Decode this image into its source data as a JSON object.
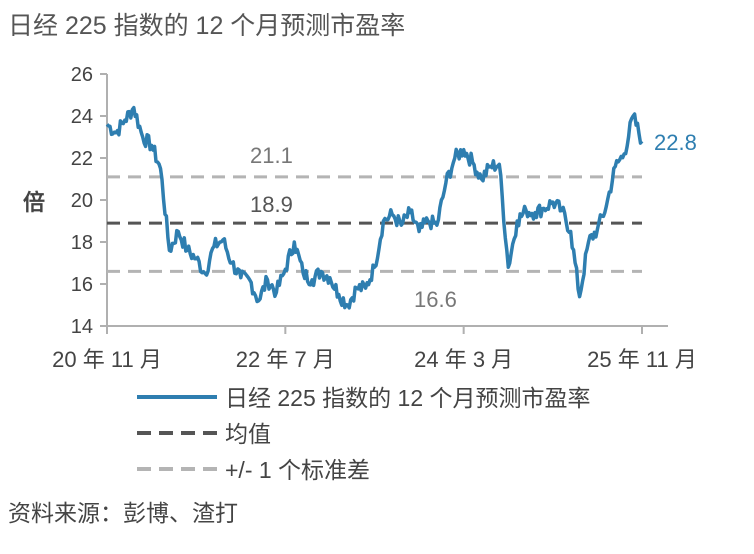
{
  "page": {
    "title": "日经 225 指数的 12 个月预测市盈率",
    "source": "资料来源：彭博、渣打"
  },
  "chart_data": {
    "type": "line",
    "ylabel": "倍",
    "ylim": [
      14,
      26
    ],
    "yticks": [
      14,
      16,
      18,
      20,
      22,
      24,
      26
    ],
    "xlim": [
      "2020-11",
      "2025-11"
    ],
    "xticks": [
      {
        "date": "2020-11",
        "label": "20 年 11 月"
      },
      {
        "date": "2022-07",
        "label": "22 年 7 月"
      },
      {
        "date": "2024-03",
        "label": "24 年 3 月"
      },
      {
        "date": "2025-11",
        "label": "25 年 11 月"
      }
    ],
    "colors": {
      "series": "#2e7eb0",
      "mean": "#555555",
      "band": "#b4b4b4"
    },
    "series": [
      {
        "name": "日经 225 指数的 12 个月预测市盈率",
        "points": [
          [
            "2020-11",
            23.6
          ],
          [
            "2020-12",
            23.2
          ],
          [
            "2021-01",
            23.8
          ],
          [
            "2021-02",
            24.4
          ],
          [
            "2021-03",
            23.0
          ],
          [
            "2021-04",
            22.6
          ],
          [
            "2021-05",
            21.5
          ],
          [
            "2021-06",
            17.6
          ],
          [
            "2021-07",
            18.5
          ],
          [
            "2021-08",
            17.6
          ],
          [
            "2021-09",
            17.2
          ],
          [
            "2021-10",
            16.5
          ],
          [
            "2021-11",
            17.8
          ],
          [
            "2021-12",
            18.1
          ],
          [
            "2022-01",
            17.0
          ],
          [
            "2022-02",
            16.3
          ],
          [
            "2022-03",
            16.2
          ],
          [
            "2022-04",
            15.2
          ],
          [
            "2022-05",
            16.2
          ],
          [
            "2022-06",
            15.6
          ],
          [
            "2022-07",
            16.7
          ],
          [
            "2022-08",
            18.0
          ],
          [
            "2022-09",
            16.5
          ],
          [
            "2022-10",
            16.2
          ],
          [
            "2022-11",
            16.6
          ],
          [
            "2022-12",
            16.3
          ],
          [
            "2023-01",
            15.5
          ],
          [
            "2023-02",
            15.0
          ],
          [
            "2023-03",
            15.8
          ],
          [
            "2023-04",
            15.8
          ],
          [
            "2023-05",
            16.8
          ],
          [
            "2023-06",
            19.0
          ],
          [
            "2023-07",
            19.3
          ],
          [
            "2023-08",
            18.8
          ],
          [
            "2023-09",
            19.4
          ],
          [
            "2023-10",
            18.5
          ],
          [
            "2023-11",
            19.0
          ],
          [
            "2023-12",
            18.8
          ],
          [
            "2024-01",
            20.8
          ],
          [
            "2024-02",
            22.0
          ],
          [
            "2024-03",
            22.4
          ],
          [
            "2024-04",
            21.8
          ],
          [
            "2024-05",
            21.0
          ],
          [
            "2024-06",
            21.6
          ],
          [
            "2024-07",
            21.7
          ],
          [
            "2024-08",
            16.8
          ],
          [
            "2024-09",
            19.0
          ],
          [
            "2024-10",
            19.5
          ],
          [
            "2024-11",
            19.4
          ],
          [
            "2024-12",
            19.6
          ],
          [
            "2025-01",
            19.9
          ],
          [
            "2025-02",
            19.5
          ],
          [
            "2025-03",
            18.5
          ],
          [
            "2025-04",
            15.4
          ],
          [
            "2025-05",
            18.0
          ],
          [
            "2025-06",
            18.6
          ],
          [
            "2025-07",
            19.7
          ],
          [
            "2025-08",
            21.6
          ],
          [
            "2025-09",
            22.2
          ],
          [
            "2025-10",
            24.0
          ],
          [
            "2025-11",
            22.8
          ]
        ],
        "last_label": "22.8"
      }
    ],
    "reference_lines": [
      {
        "name": "均值",
        "value": 18.9,
        "label": "18.9"
      },
      {
        "name": "+/- 1 个标准差",
        "value": 21.1,
        "label": "21.1"
      },
      {
        "name": "+/- 1 个标准差",
        "value": 16.6,
        "label": "16.6"
      }
    ],
    "legend": [
      {
        "label": "日经 225 指数的 12 个月预测市盈率",
        "style": "solid"
      },
      {
        "label": "均值",
        "style": "dashed-dark"
      },
      {
        "label": "+/- 1 个标准差",
        "style": "dashed-grey"
      }
    ],
    "legend_placement": "bottom"
  }
}
